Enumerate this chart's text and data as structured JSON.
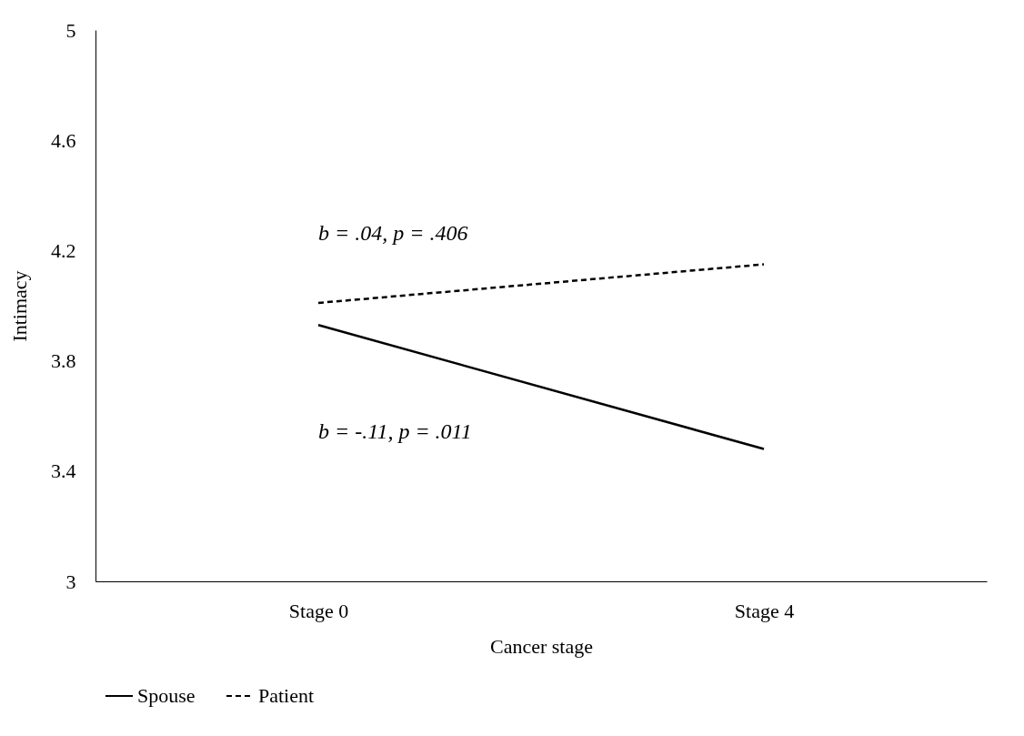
{
  "chart_data": {
    "type": "line",
    "xlabel": "Cancer stage",
    "ylabel": "Intimacy",
    "categories": [
      "Stage 0",
      "Stage 4"
    ],
    "series": [
      {
        "name": "Spouse",
        "color": "#000000",
        "values": [
          3.93,
          3.48
        ],
        "line_style": "solid"
      },
      {
        "name": "Patient",
        "color": "#000000",
        "values": [
          4.01,
          4.15
        ],
        "line_style": "dashed"
      }
    ],
    "ylim": [
      3,
      5
    ],
    "yticks": [
      3,
      3.4,
      3.8,
      4.2,
      4.6,
      5
    ],
    "annotations": [
      "b = .04, p = .406",
      "b = -.11, p = .011"
    ],
    "grid": false,
    "legend": "bottom",
    "marker": "none"
  }
}
